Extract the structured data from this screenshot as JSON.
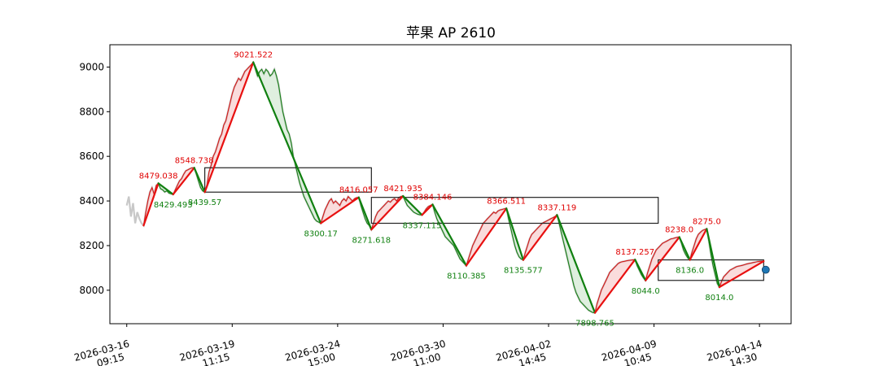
{
  "chart_data": {
    "type": "line",
    "title": "苹果 AP 2610",
    "ylim": [
      7850,
      9100
    ],
    "y_ticks": [
      8000,
      8200,
      8400,
      8600,
      8800,
      9000
    ],
    "x_tick_labels": [
      [
        "2026-03-16",
        "09:15"
      ],
      [
        "2026-03-19",
        "11:15"
      ],
      [
        "2026-03-24",
        "15:00"
      ],
      [
        "2026-03-30",
        "11:00"
      ],
      [
        "2026-04-02",
        "14:45"
      ],
      [
        "2026-04-09",
        "10:45"
      ],
      [
        "2026-04-14",
        "14:30"
      ]
    ],
    "x_range": [
      -8,
      315
    ],
    "x_tick_positions": [
      0,
      50,
      100,
      150,
      200,
      250,
      300
    ],
    "zigzag": [
      {
        "x": 8,
        "y": 8290,
        "label": "",
        "kind": "trough"
      },
      {
        "x": 15,
        "y": 8479.038,
        "label": "8479.038",
        "kind": "peak"
      },
      {
        "x": 22,
        "y": 8429.493,
        "label": "8429.493",
        "kind": "trough"
      },
      {
        "x": 32,
        "y": 8548.738,
        "label": "8548.738",
        "kind": "peak"
      },
      {
        "x": 37,
        "y": 8439.57,
        "label": "8439.57",
        "kind": "trough"
      },
      {
        "x": 60,
        "y": 9021.522,
        "label": "9021.522",
        "kind": "peak"
      },
      {
        "x": 92,
        "y": 8300.17,
        "label": "8300.17",
        "kind": "trough"
      },
      {
        "x": 110,
        "y": 8416.057,
        "label": "8416.057",
        "kind": "peak"
      },
      {
        "x": 116,
        "y": 8271.618,
        "label": "8271.618",
        "kind": "trough"
      },
      {
        "x": 131,
        "y": 8421.935,
        "label": "8421.935",
        "kind": "peak"
      },
      {
        "x": 140,
        "y": 8337.115,
        "label": "8337.115",
        "kind": "trough"
      },
      {
        "x": 145,
        "y": 8384.146,
        "label": "8384.146",
        "kind": "peak"
      },
      {
        "x": 161,
        "y": 8110.385,
        "label": "8110.385",
        "kind": "trough"
      },
      {
        "x": 180,
        "y": 8366.511,
        "label": "8366.511",
        "kind": "peak"
      },
      {
        "x": 188,
        "y": 8135.577,
        "label": "8135.577",
        "kind": "trough"
      },
      {
        "x": 204,
        "y": 8337.119,
        "label": "8337.119",
        "kind": "peak"
      },
      {
        "x": 222,
        "y": 7898.765,
        "label": "7898.765",
        "kind": "trough"
      },
      {
        "x": 241,
        "y": 8137.257,
        "label": "8137.257",
        "kind": "peak"
      },
      {
        "x": 246,
        "y": 8044.0,
        "label": "8044.0",
        "kind": "trough"
      },
      {
        "x": 262,
        "y": 8238.0,
        "label": "8238.0",
        "kind": "peak"
      },
      {
        "x": 267,
        "y": 8136.0,
        "label": "8136.0",
        "kind": "trough"
      },
      {
        "x": 275,
        "y": 8275.0,
        "label": "8275.0",
        "kind": "peak"
      },
      {
        "x": 281,
        "y": 8014.0,
        "label": "8014.0",
        "kind": "trough"
      },
      {
        "x": 302,
        "y": 8130,
        "label": "",
        "kind": "end"
      }
    ],
    "price_trace": [
      [
        0,
        8380
      ],
      [
        1,
        8420
      ],
      [
        2,
        8330
      ],
      [
        3,
        8390
      ],
      [
        4,
        8300
      ],
      [
        5,
        8350
      ],
      [
        6,
        8320
      ],
      [
        7,
        8300
      ],
      [
        8,
        8290
      ],
      [
        9,
        8350
      ],
      [
        10,
        8400
      ],
      [
        11,
        8440
      ],
      [
        12,
        8460
      ],
      [
        13,
        8430
      ],
      [
        14,
        8470
      ],
      [
        15,
        8479
      ],
      [
        16,
        8455
      ],
      [
        17,
        8450
      ],
      [
        18,
        8440
      ],
      [
        19,
        8445
      ],
      [
        20,
        8435
      ],
      [
        21,
        8432
      ],
      [
        22,
        8429
      ],
      [
        23,
        8450
      ],
      [
        24,
        8470
      ],
      [
        25,
        8490
      ],
      [
        26,
        8500
      ],
      [
        27,
        8520
      ],
      [
        28,
        8535
      ],
      [
        29,
        8540
      ],
      [
        30,
        8545
      ],
      [
        31,
        8549
      ],
      [
        32,
        8548
      ],
      [
        33,
        8520
      ],
      [
        34,
        8490
      ],
      [
        35,
        8460
      ],
      [
        36,
        8445
      ],
      [
        37,
        8440
      ],
      [
        38,
        8470
      ],
      [
        39,
        8530
      ],
      [
        40,
        8560
      ],
      [
        41,
        8600
      ],
      [
        42,
        8620
      ],
      [
        43,
        8650
      ],
      [
        44,
        8680
      ],
      [
        45,
        8700
      ],
      [
        46,
        8740
      ],
      [
        47,
        8760
      ],
      [
        48,
        8800
      ],
      [
        49,
        8840
      ],
      [
        50,
        8880
      ],
      [
        51,
        8910
      ],
      [
        52,
        8930
      ],
      [
        53,
        8950
      ],
      [
        54,
        8940
      ],
      [
        55,
        8960
      ],
      [
        56,
        8980
      ],
      [
        57,
        8990
      ],
      [
        58,
        9000
      ],
      [
        59,
        9010
      ],
      [
        60,
        9021
      ],
      [
        61,
        8990
      ],
      [
        62,
        8960
      ],
      [
        63,
        8980
      ],
      [
        64,
        8990
      ],
      [
        65,
        8970
      ],
      [
        66,
        8990
      ],
      [
        67,
        8980
      ],
      [
        68,
        8960
      ],
      [
        69,
        8970
      ],
      [
        70,
        8990
      ],
      [
        71,
        8960
      ],
      [
        72,
        8920
      ],
      [
        73,
        8860
      ],
      [
        74,
        8800
      ],
      [
        75,
        8760
      ],
      [
        76,
        8720
      ],
      [
        77,
        8700
      ],
      [
        78,
        8660
      ],
      [
        79,
        8600
      ],
      [
        80,
        8560
      ],
      [
        81,
        8520
      ],
      [
        82,
        8480
      ],
      [
        83,
        8450
      ],
      [
        84,
        8420
      ],
      [
        85,
        8400
      ],
      [
        86,
        8380
      ],
      [
        87,
        8360
      ],
      [
        88,
        8340
      ],
      [
        89,
        8320
      ],
      [
        90,
        8310
      ],
      [
        91,
        8305
      ],
      [
        92,
        8300
      ],
      [
        93,
        8330
      ],
      [
        94,
        8360
      ],
      [
        95,
        8380
      ],
      [
        96,
        8400
      ],
      [
        97,
        8410
      ],
      [
        98,
        8390
      ],
      [
        99,
        8400
      ],
      [
        100,
        8390
      ],
      [
        101,
        8380
      ],
      [
        102,
        8400
      ],
      [
        103,
        8410
      ],
      [
        104,
        8400
      ],
      [
        105,
        8420
      ],
      [
        106,
        8410
      ],
      [
        107,
        8400
      ],
      [
        108,
        8410
      ],
      [
        109,
        8415
      ],
      [
        110,
        8416
      ],
      [
        111,
        8380
      ],
      [
        112,
        8350
      ],
      [
        113,
        8320
      ],
      [
        114,
        8300
      ],
      [
        115,
        8290
      ],
      [
        116,
        8272
      ],
      [
        117,
        8300
      ],
      [
        118,
        8330
      ],
      [
        119,
        8350
      ],
      [
        120,
        8360
      ],
      [
        121,
        8370
      ],
      [
        122,
        8380
      ],
      [
        123,
        8390
      ],
      [
        124,
        8400
      ],
      [
        125,
        8395
      ],
      [
        126,
        8405
      ],
      [
        127,
        8410
      ],
      [
        128,
        8400
      ],
      [
        129,
        8415
      ],
      [
        130,
        8420
      ],
      [
        131,
        8422
      ],
      [
        132,
        8400
      ],
      [
        133,
        8380
      ],
      [
        134,
        8370
      ],
      [
        135,
        8360
      ],
      [
        136,
        8350
      ],
      [
        137,
        8345
      ],
      [
        138,
        8340
      ],
      [
        139,
        8338
      ],
      [
        140,
        8337
      ],
      [
        141,
        8350
      ],
      [
        142,
        8365
      ],
      [
        143,
        8375
      ],
      [
        144,
        8380
      ],
      [
        145,
        8384
      ],
      [
        146,
        8350
      ],
      [
        147,
        8320
      ],
      [
        148,
        8300
      ],
      [
        149,
        8280
      ],
      [
        150,
        8260
      ],
      [
        151,
        8240
      ],
      [
        152,
        8230
      ],
      [
        153,
        8220
      ],
      [
        154,
        8210
      ],
      [
        155,
        8200
      ],
      [
        156,
        8180
      ],
      [
        157,
        8160
      ],
      [
        158,
        8140
      ],
      [
        159,
        8130
      ],
      [
        160,
        8120
      ],
      [
        161,
        8110
      ],
      [
        162,
        8140
      ],
      [
        163,
        8170
      ],
      [
        164,
        8200
      ],
      [
        165,
        8220
      ],
      [
        166,
        8240
      ],
      [
        167,
        8260
      ],
      [
        168,
        8280
      ],
      [
        169,
        8300
      ],
      [
        170,
        8310
      ],
      [
        171,
        8320
      ],
      [
        172,
        8330
      ],
      [
        173,
        8340
      ],
      [
        174,
        8350
      ],
      [
        175,
        8345
      ],
      [
        176,
        8355
      ],
      [
        177,
        8360
      ],
      [
        178,
        8362
      ],
      [
        179,
        8365
      ],
      [
        180,
        8367
      ],
      [
        181,
        8320
      ],
      [
        182,
        8280
      ],
      [
        183,
        8240
      ],
      [
        184,
        8200
      ],
      [
        185,
        8170
      ],
      [
        186,
        8150
      ],
      [
        187,
        8140
      ],
      [
        188,
        8136
      ],
      [
        189,
        8170
      ],
      [
        190,
        8200
      ],
      [
        191,
        8230
      ],
      [
        192,
        8250
      ],
      [
        193,
        8260
      ],
      [
        194,
        8270
      ],
      [
        195,
        8280
      ],
      [
        196,
        8290
      ],
      [
        197,
        8300
      ],
      [
        198,
        8305
      ],
      [
        199,
        8310
      ],
      [
        200,
        8315
      ],
      [
        201,
        8320
      ],
      [
        202,
        8325
      ],
      [
        203,
        8330
      ],
      [
        204,
        8337
      ],
      [
        205,
        8300
      ],
      [
        206,
        8260
      ],
      [
        207,
        8220
      ],
      [
        208,
        8180
      ],
      [
        209,
        8140
      ],
      [
        210,
        8100
      ],
      [
        211,
        8060
      ],
      [
        212,
        8020
      ],
      [
        213,
        7990
      ],
      [
        214,
        7970
      ],
      [
        215,
        7950
      ],
      [
        216,
        7940
      ],
      [
        217,
        7930
      ],
      [
        218,
        7920
      ],
      [
        219,
        7910
      ],
      [
        220,
        7905
      ],
      [
        221,
        7900
      ],
      [
        222,
        7899
      ],
      [
        223,
        7940
      ],
      [
        224,
        7970
      ],
      [
        225,
        8000
      ],
      [
        226,
        8020
      ],
      [
        227,
        8040
      ],
      [
        228,
        8060
      ],
      [
        229,
        8080
      ],
      [
        230,
        8090
      ],
      [
        231,
        8100
      ],
      [
        232,
        8110
      ],
      [
        233,
        8120
      ],
      [
        234,
        8125
      ],
      [
        235,
        8128
      ],
      [
        236,
        8130
      ],
      [
        237,
        8132
      ],
      [
        238,
        8134
      ],
      [
        239,
        8135
      ],
      [
        240,
        8136
      ],
      [
        241,
        8137
      ],
      [
        242,
        8110
      ],
      [
        243,
        8090
      ],
      [
        244,
        8070
      ],
      [
        245,
        8055
      ],
      [
        246,
        8044
      ],
      [
        247,
        8080
      ],
      [
        248,
        8110
      ],
      [
        249,
        8140
      ],
      [
        250,
        8160
      ],
      [
        251,
        8180
      ],
      [
        252,
        8190
      ],
      [
        253,
        8200
      ],
      [
        254,
        8210
      ],
      [
        255,
        8215
      ],
      [
        256,
        8220
      ],
      [
        257,
        8225
      ],
      [
        258,
        8230
      ],
      [
        259,
        8232
      ],
      [
        260,
        8235
      ],
      [
        261,
        8237
      ],
      [
        262,
        8238
      ],
      [
        263,
        8210
      ],
      [
        264,
        8180
      ],
      [
        265,
        8160
      ],
      [
        266,
        8145
      ],
      [
        267,
        8136
      ],
      [
        268,
        8170
      ],
      [
        269,
        8200
      ],
      [
        270,
        8230
      ],
      [
        271,
        8250
      ],
      [
        272,
        8260
      ],
      [
        273,
        8268
      ],
      [
        274,
        8272
      ],
      [
        275,
        8275
      ],
      [
        276,
        8220
      ],
      [
        277,
        8160
      ],
      [
        278,
        8110
      ],
      [
        279,
        8070
      ],
      [
        280,
        8030
      ],
      [
        281,
        8014
      ],
      [
        282,
        8040
      ],
      [
        283,
        8060
      ],
      [
        284,
        8070
      ],
      [
        285,
        8080
      ],
      [
        286,
        8090
      ],
      [
        287,
        8095
      ],
      [
        288,
        8100
      ],
      [
        289,
        8105
      ],
      [
        290,
        8108
      ],
      [
        291,
        8110
      ],
      [
        292,
        8112
      ],
      [
        293,
        8115
      ],
      [
        294,
        8118
      ],
      [
        295,
        8120
      ],
      [
        296,
        8122
      ],
      [
        297,
        8124
      ],
      [
        298,
        8126
      ],
      [
        299,
        8128
      ],
      [
        300,
        8129
      ],
      [
        301,
        8130
      ],
      [
        302,
        8130
      ]
    ],
    "boxes": [
      {
        "x0": 37,
        "x1": 116,
        "y0": 8439.57,
        "y1": 8548.738
      },
      {
        "x0": 116,
        "x1": 252,
        "y0": 8300,
        "y1": 8416.057
      },
      {
        "x0": 252,
        "x1": 302,
        "y0": 8044,
        "y1": 8136
      }
    ],
    "marker": {
      "x": 302,
      "y": 8110
    }
  }
}
